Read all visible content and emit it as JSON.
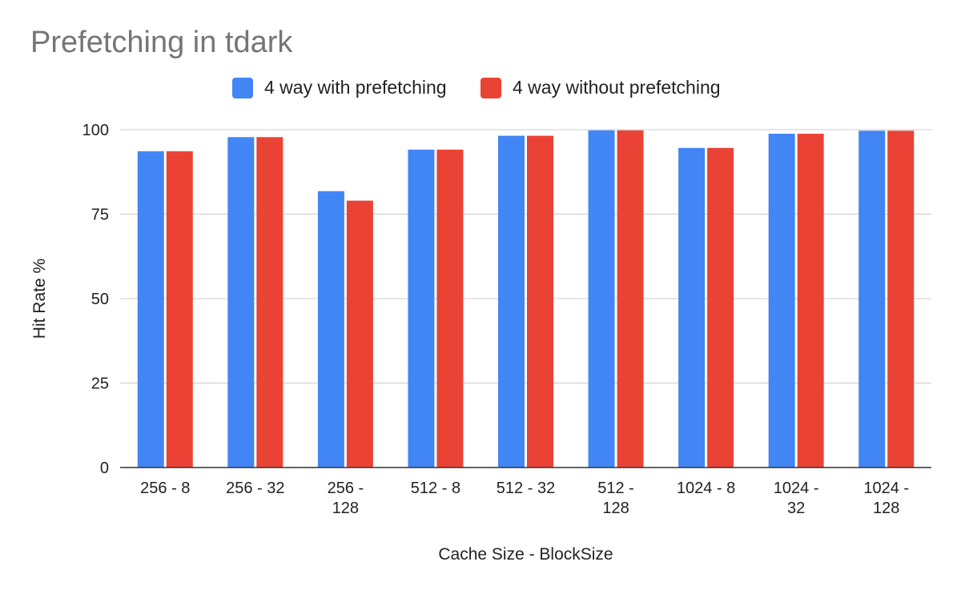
{
  "chart_data": {
    "type": "bar",
    "title": "Prefetching in tdark",
    "xlabel": "Cache Size - BlockSize",
    "ylabel": "Hit Rate %",
    "ylim": [
      0,
      100
    ],
    "yticks": [
      "0",
      "25",
      "50",
      "75",
      "100"
    ],
    "grid": true,
    "legend_position": "top",
    "categories": [
      [
        "256 - 8"
      ],
      [
        "256 - 32"
      ],
      [
        "256 -",
        "128"
      ],
      [
        "512 - 8"
      ],
      [
        "512 - 32"
      ],
      [
        "512 -",
        "128"
      ],
      [
        "1024 - 8"
      ],
      [
        "1024 -",
        "32"
      ],
      [
        "1024 -",
        "128"
      ]
    ],
    "series": [
      {
        "name": "4 way with prefetching",
        "color": "#4285F4",
        "values": [
          93.6,
          97.8,
          81.8,
          94.1,
          98.2,
          99.8,
          94.6,
          98.8,
          99.7
        ]
      },
      {
        "name": "4 way without prefetching",
        "color": "#EA4335",
        "values": [
          93.6,
          97.8,
          79.0,
          94.1,
          98.2,
          99.8,
          94.6,
          98.8,
          99.7
        ]
      }
    ]
  }
}
